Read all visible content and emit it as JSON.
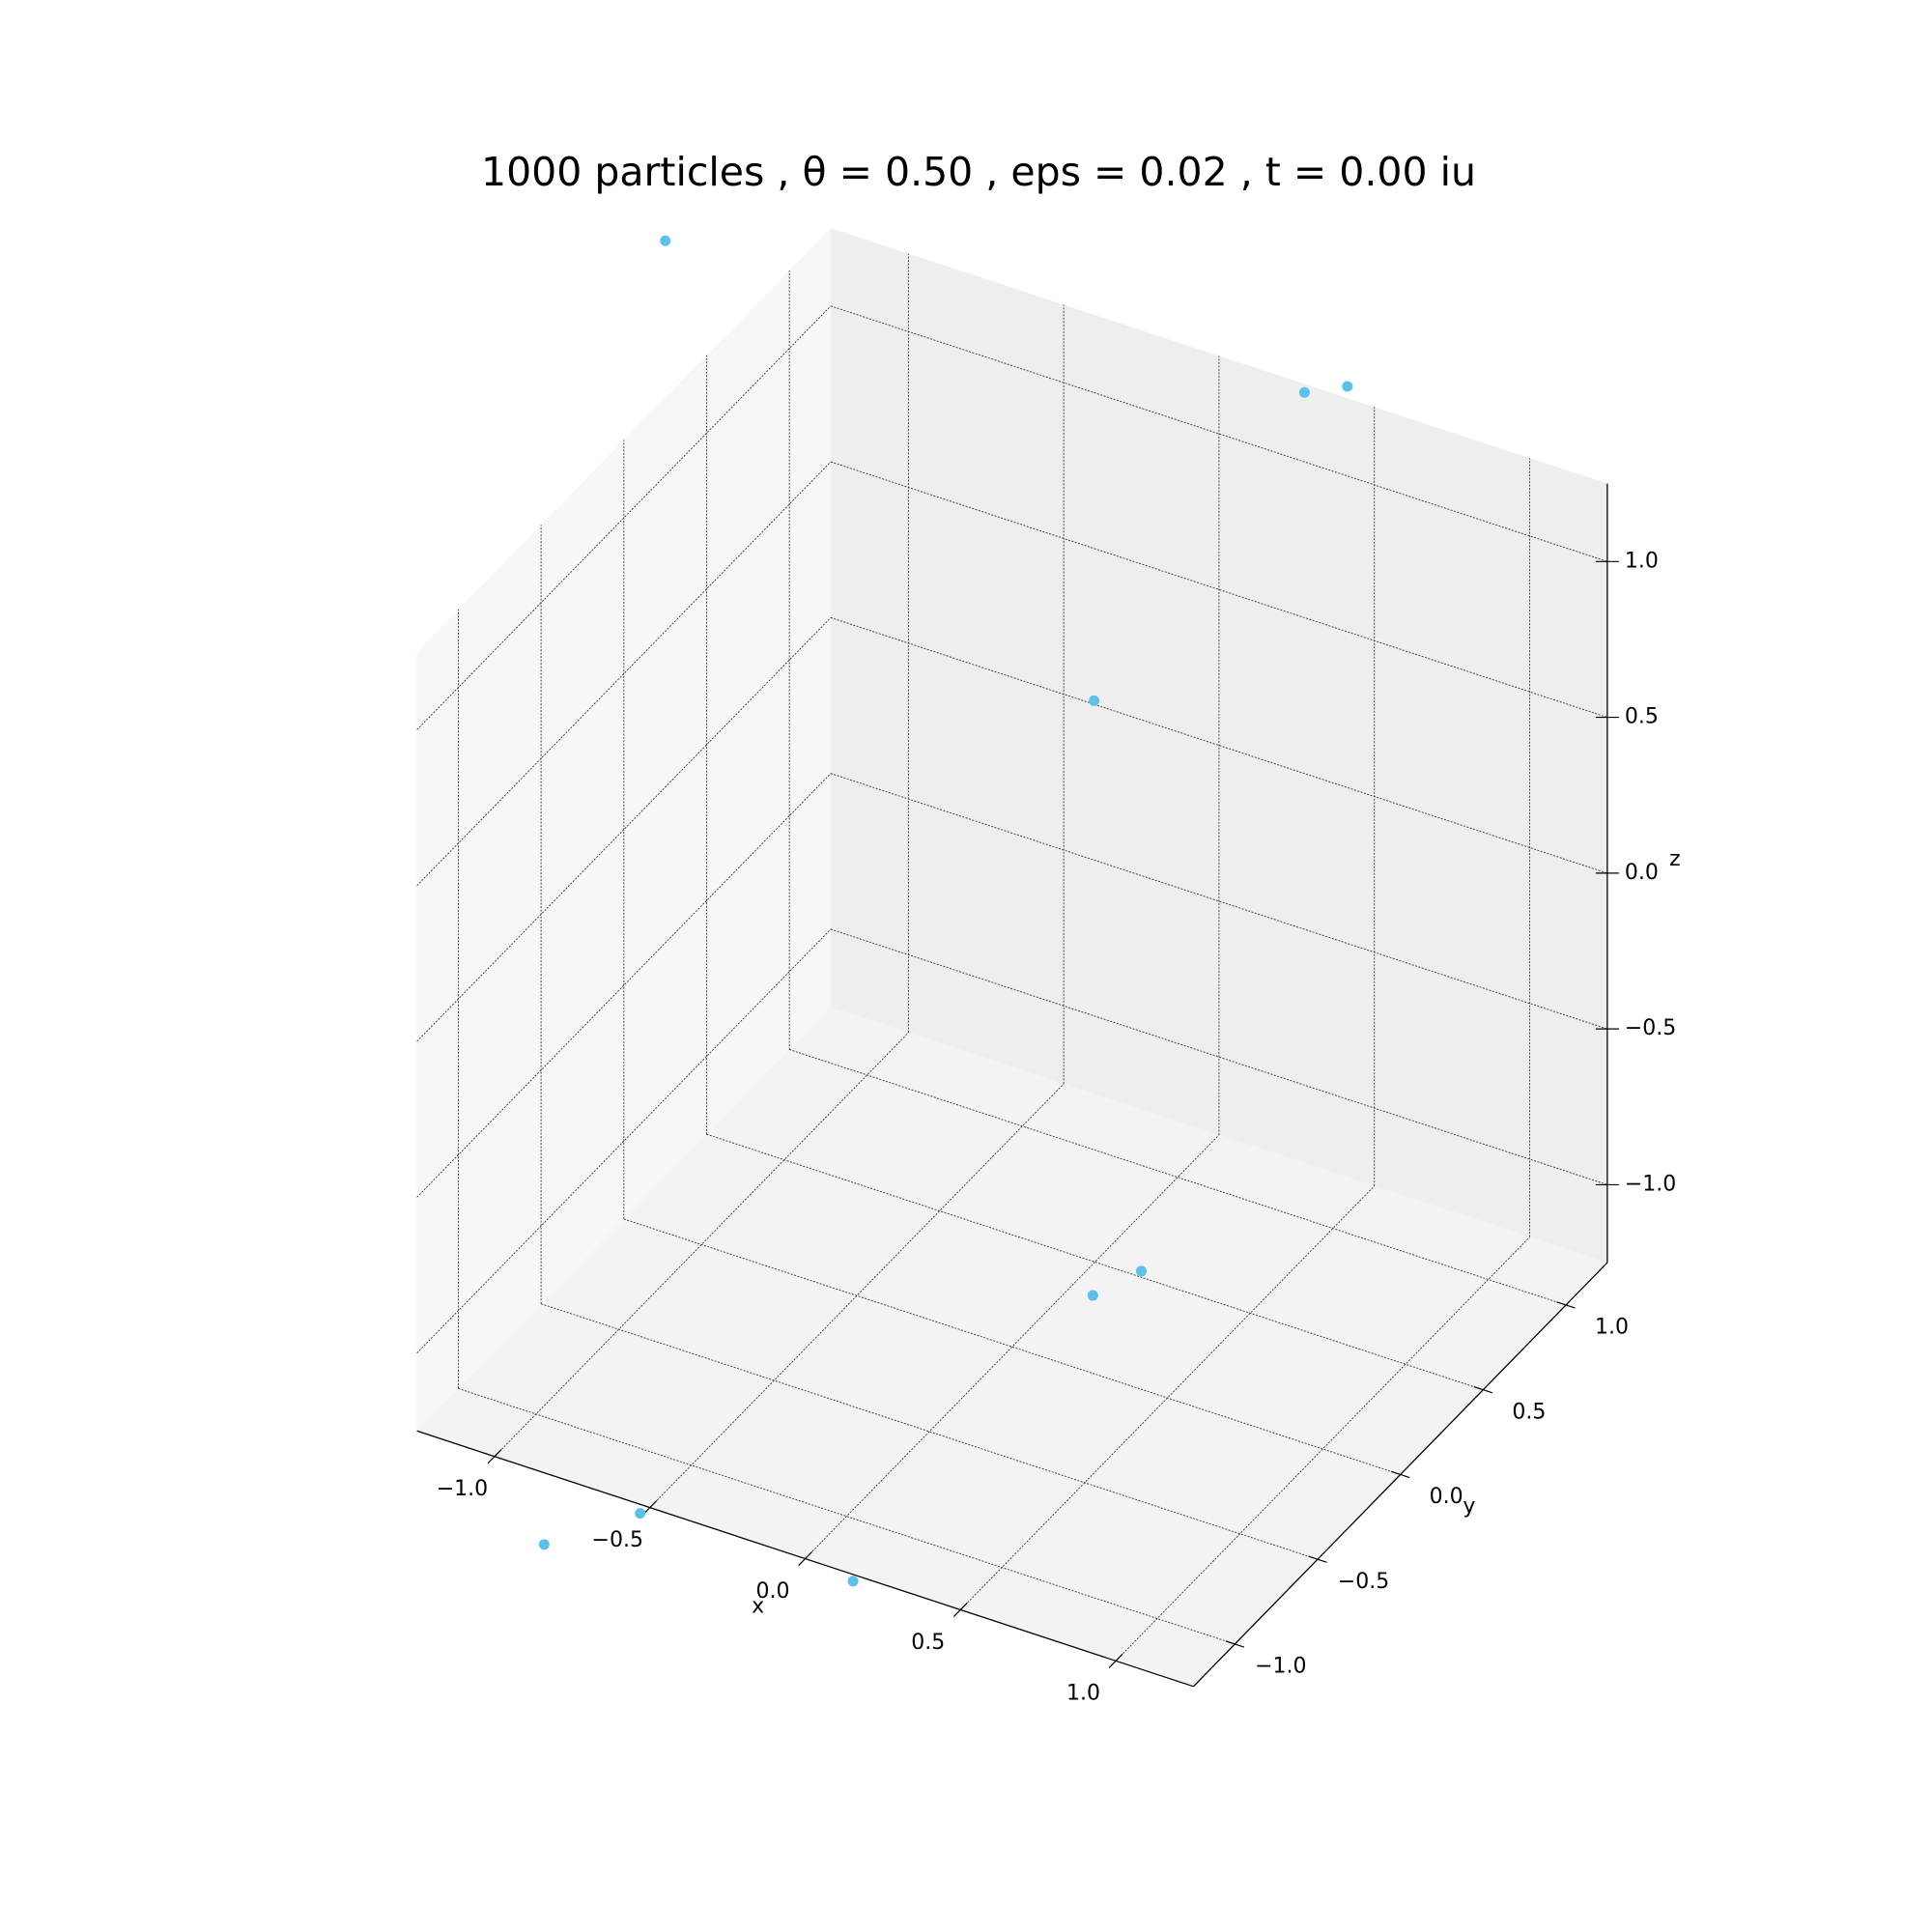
{
  "chart_data": {
    "type": "scatter3d",
    "title": "1000 particles , θ = 0.50 , eps = 0.02 , t = 0.00 iu",
    "xlabel": "x",
    "ylabel": "y",
    "zlabel": "z",
    "xlim": [
      -1.25,
      1.25
    ],
    "ylim": [
      -1.25,
      1.25
    ],
    "zlim": [
      -1.25,
      1.25
    ],
    "xticks": [
      {
        "value": -1,
        "label": "−1.0"
      },
      {
        "value": -0.5,
        "label": "−0.5"
      },
      {
        "value": 0,
        "label": "0.0"
      },
      0.5,
      {
        "value": 1,
        "label": "1.0"
      }
    ],
    "yticks": [
      {
        "value": -1,
        "label": "−1.0"
      },
      {
        "value": -0.5,
        "label": "−0.5"
      },
      {
        "value": 0,
        "label": "0.0"
      },
      0.5,
      {
        "value": 1,
        "label": "1.0"
      }
    ],
    "zticks": [
      {
        "value": -1,
        "label": "−1.0"
      },
      {
        "value": -0.5,
        "label": "−0.5"
      },
      {
        "value": 0,
        "label": "0.0"
      },
      0.5,
      {
        "value": 1,
        "label": "1.0"
      }
    ],
    "grid": true,
    "series": [
      {
        "color": "#5bc0eb",
        "x": [
          -1.66,
          0.11,
          0.2,
          -0.04,
          0.32,
          0.26,
          -0.51,
          -0.67,
          0.17
        ],
        "y": [
          1.02,
          1.56,
          1.65,
          0.57,
          0.18,
          0.0,
          -1.29,
          -1.57,
          -1.28
        ],
        "z": [
          1.2,
          1.0,
          1.0,
          0.5,
          -1.0,
          -1.0,
          -1.25,
          -1.25,
          -1.25
        ]
      }
    ]
  }
}
